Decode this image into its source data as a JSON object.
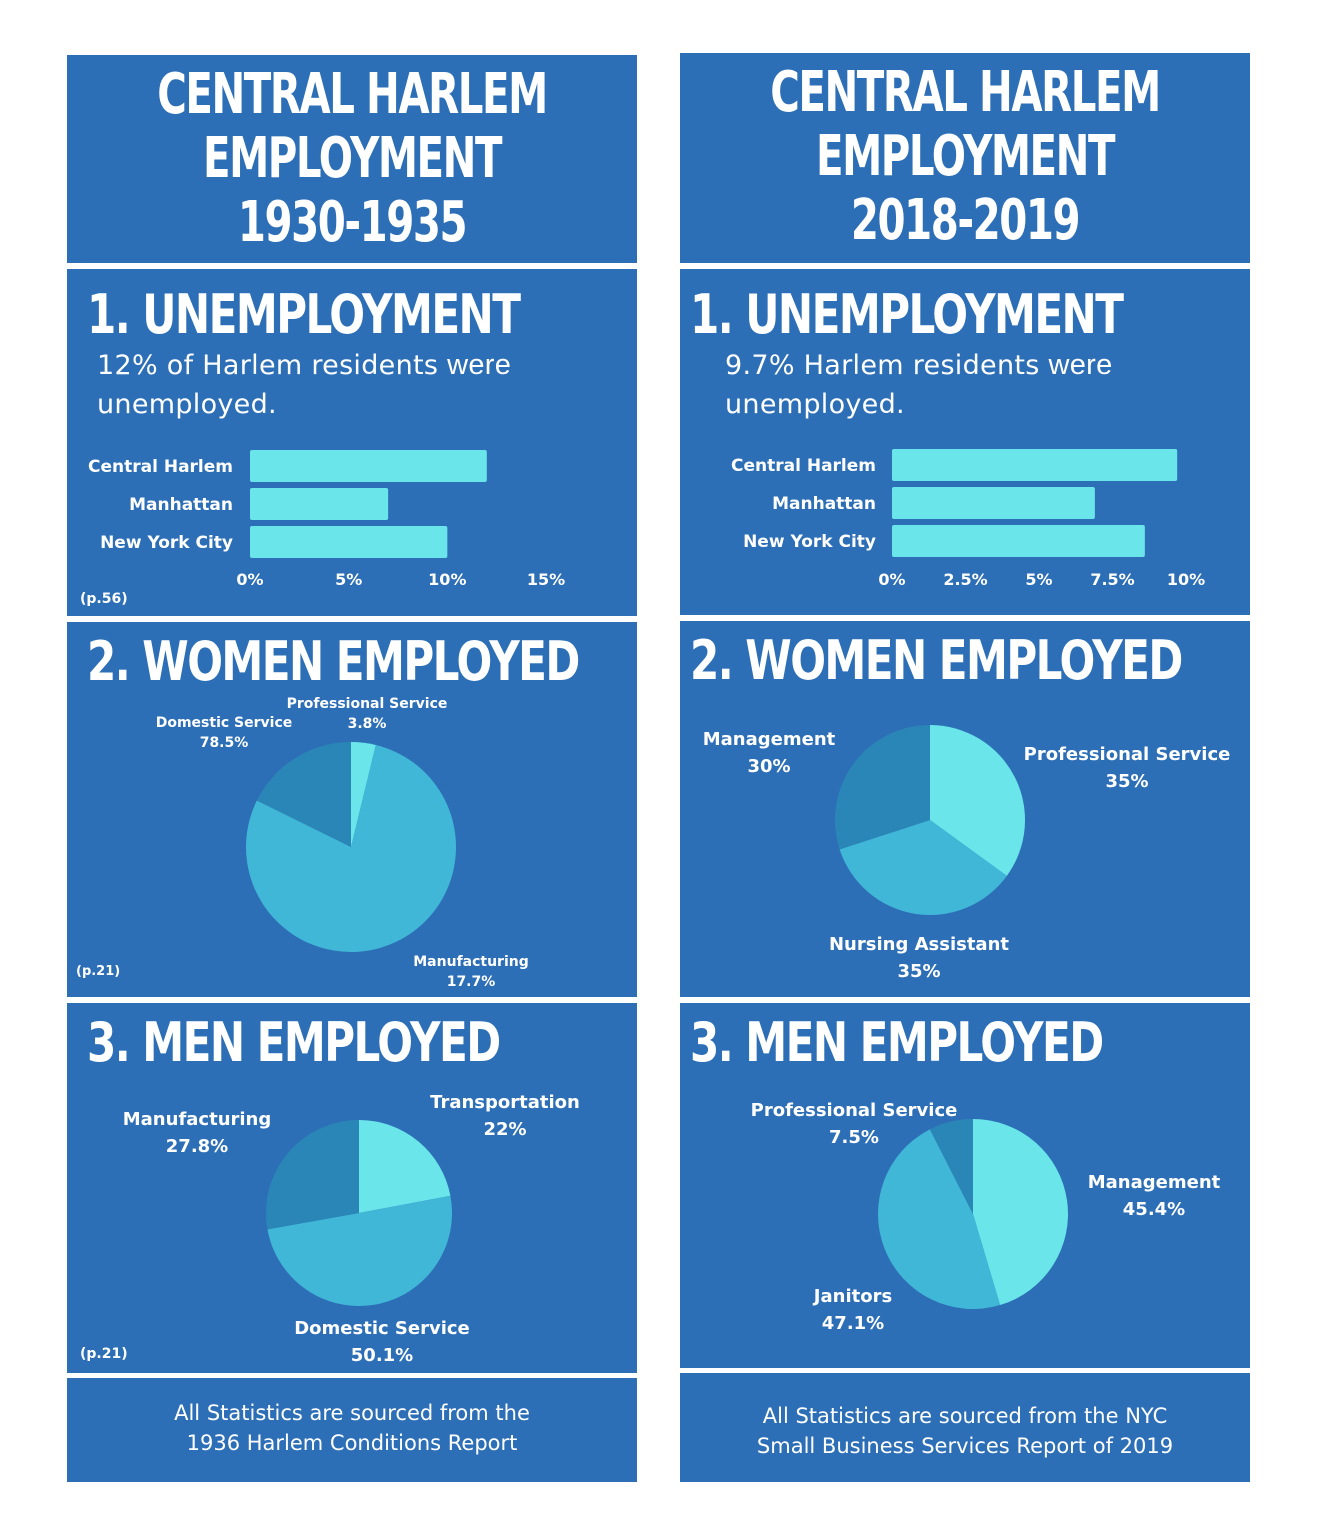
{
  "left": {
    "title": [
      "CENTRAL HARLEM",
      "EMPLOYMENT",
      "1930-1935"
    ],
    "unemployment": {
      "heading": "1. UNEMPLOYMENT",
      "lead_a": "12% of Harlem residents",
      "lead_b": "were",
      "lead_c": "unemployed.",
      "citation": "(p.56)"
    },
    "women": {
      "heading": "2. WOMEN EMPLOYED",
      "citation": "(p.21)"
    },
    "men": {
      "heading": "3. MEN EMPLOYED",
      "citation": "(p.21)"
    },
    "footer": [
      "All Statistics are sourced from the",
      "1936 Harlem Conditions Report"
    ]
  },
  "right": {
    "title": [
      "CENTRAL HARLEM",
      "EMPLOYMENT",
      "2018-2019"
    ],
    "unemployment": {
      "heading": "1. UNEMPLOYMENT",
      "lead_a": "9.7% Harlem residents",
      "lead_b": "were",
      "lead_c": "unemployed."
    },
    "women": {
      "heading": "2. WOMEN EMPLOYED"
    },
    "men": {
      "heading": "3. MEN EMPLOYED"
    },
    "footer": [
      "All Statistics are sourced from the NYC",
      "Small Business Services Report of 2019"
    ]
  },
  "colors": {
    "panel": "#2d6fb6",
    "bar": "#6ae6ea",
    "slice_light": "#6ae6ea",
    "slice_mid": "#41b7d8",
    "slice_dark": "#2a86b6"
  },
  "chart_data": [
    {
      "id": "unemp1930",
      "type": "bar",
      "orientation": "horizontal",
      "categories": [
        "Central Harlem",
        "Manhattan",
        "New York City"
      ],
      "values": [
        12,
        7,
        10
      ],
      "xlim": [
        0,
        15
      ],
      "ticks": [
        "0%",
        "5%",
        "10%",
        "15%"
      ],
      "tick_values": [
        0,
        5,
        10,
        15
      ]
    },
    {
      "id": "unemp2018",
      "type": "bar",
      "orientation": "horizontal",
      "categories": [
        "Central Harlem",
        "Manhattan",
        "New York City"
      ],
      "values": [
        9.7,
        6.9,
        8.6
      ],
      "xlim": [
        0,
        10
      ],
      "ticks": [
        "0%",
        "2.5%",
        "5%",
        "7.5%",
        "10%"
      ],
      "tick_values": [
        0,
        2.5,
        5,
        7.5,
        10
      ]
    },
    {
      "id": "women1930",
      "type": "pie",
      "slices": [
        {
          "label": "Professional Service",
          "value": 3.8,
          "value_label": "3.8%",
          "color": "#6ae6ea"
        },
        {
          "label": "Domestic Service",
          "value": 78.5,
          "value_label": "78.5%",
          "color": "#41b7d8"
        },
        {
          "label": "Manufacturing",
          "value": 17.7,
          "value_label": "17.7%",
          "color": "#2a86b6"
        }
      ]
    },
    {
      "id": "women2018",
      "type": "pie",
      "slices": [
        {
          "label": "Professional Service",
          "value": 35,
          "value_label": "35%",
          "color": "#6ae6ea"
        },
        {
          "label": "Nursing Assistant",
          "value": 35,
          "value_label": "35%",
          "color": "#41b7d8"
        },
        {
          "label": "Management",
          "value": 30,
          "value_label": "30%",
          "color": "#2a86b6"
        }
      ]
    },
    {
      "id": "men1930",
      "type": "pie",
      "slices": [
        {
          "label": "Transportation",
          "value": 22,
          "value_label": "22%",
          "color": "#6ae6ea"
        },
        {
          "label": "Domestic Service",
          "value": 50.1,
          "value_label": "50.1%",
          "color": "#41b7d8"
        },
        {
          "label": "Manufacturing",
          "value": 27.8,
          "value_label": "27.8%",
          "color": "#2a86b6"
        }
      ]
    },
    {
      "id": "men2018",
      "type": "pie",
      "slices": [
        {
          "label": "Management",
          "value": 45.4,
          "value_label": "45.4%",
          "color": "#6ae6ea"
        },
        {
          "label": "Janitors",
          "value": 47.1,
          "value_label": "47.1%",
          "color": "#41b7d8"
        },
        {
          "label": "Professional Service",
          "value": 7.5,
          "value_label": "7.5%",
          "color": "#2a86b6"
        }
      ]
    }
  ]
}
